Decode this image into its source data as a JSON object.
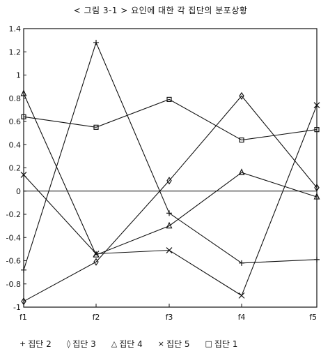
{
  "chart_data": {
    "type": "line",
    "title": "< 그림 3-1 >  요인에 대한 각 집단의 분포상황",
    "categories": [
      "f1",
      "f2",
      "f3",
      "f4",
      "f5"
    ],
    "ylim": [
      -1,
      1.4
    ],
    "yticks": [
      1.4,
      1.2,
      1,
      0.8,
      0.6,
      0.4,
      0.2,
      0,
      -0.2,
      -0.4,
      -0.6,
      -0.8,
      -1
    ],
    "grid": false,
    "legend_position": "bottom",
    "series": [
      {
        "name": "집단 2",
        "marker": "plus",
        "legend_symbol": "+",
        "values": [
          -0.68,
          1.28,
          -0.19,
          -0.62,
          -0.59
        ]
      },
      {
        "name": "집단 3",
        "marker": "diamond",
        "legend_symbol": "◊",
        "values": [
          -0.95,
          -0.61,
          0.09,
          0.82,
          0.03
        ]
      },
      {
        "name": "집단 4",
        "marker": "triangle",
        "legend_symbol": "△",
        "values": [
          0.84,
          -0.55,
          -0.3,
          0.16,
          -0.05
        ]
      },
      {
        "name": "집단 5",
        "marker": "x",
        "legend_symbol": "×",
        "values": [
          0.14,
          -0.54,
          -0.51,
          -0.9,
          0.74
        ]
      },
      {
        "name": "집단 1",
        "marker": "square",
        "legend_symbol": "□",
        "values": [
          0.64,
          0.55,
          0.79,
          0.44,
          0.53
        ]
      }
    ]
  }
}
